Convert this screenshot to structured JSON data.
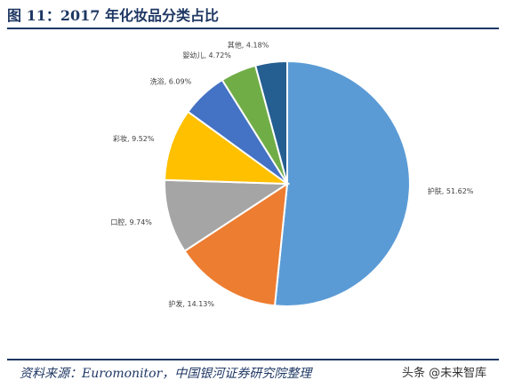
{
  "header": {
    "title": "图 11：2017 年化妆品分类占比"
  },
  "footer": {
    "source": "资料来源：Euromonitor，中国银河证券研究院整理",
    "watermark": "头条 @未来智库"
  },
  "colors": {
    "accent": "#1f3864"
  },
  "chart_data": {
    "type": "pie",
    "title": "",
    "categories": [
      "护肤",
      "护发",
      "口腔",
      "彩妆",
      "洗浴",
      "婴幼儿",
      "其他"
    ],
    "values": [
      51.62,
      14.13,
      9.74,
      9.52,
      6.09,
      4.72,
      4.18
    ],
    "labels": [
      "护肤, 51.62%",
      "护发, 14.13%",
      "口腔, 9.74%",
      "彩妆, 9.52%",
      "洗浴, 6.09%",
      "婴幼儿, 4.72%",
      "其他, 4.18%"
    ],
    "colors": [
      "#5b9bd5",
      "#ed7d31",
      "#a5a5a5",
      "#ffc000",
      "#4472c4",
      "#70ad47",
      "#255e91"
    ],
    "legend": "none"
  }
}
